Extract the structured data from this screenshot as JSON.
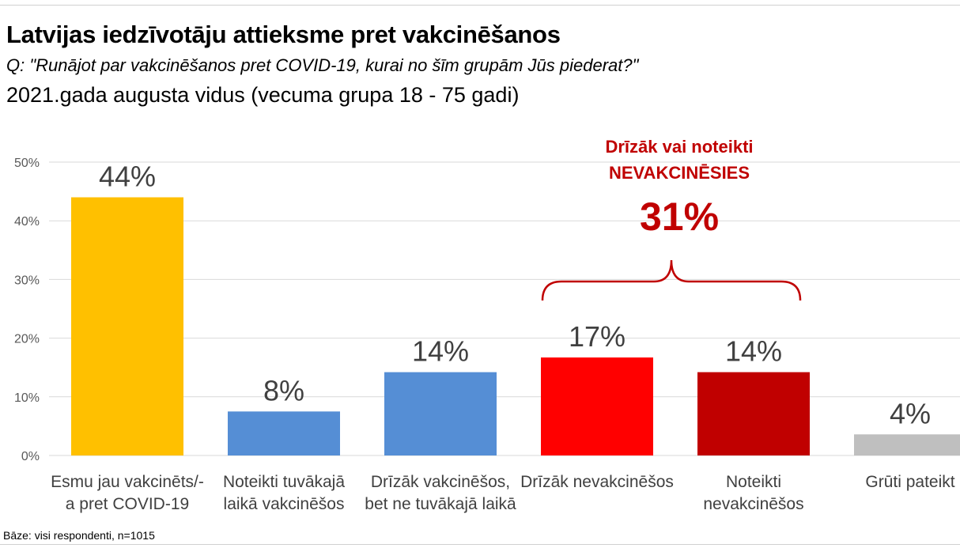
{
  "header": {
    "title": "Latvijas iedzīvotāju attieksme pret vakcinēšanos",
    "question": "Q: \"Runājot par vakcinēšanos pret COVID-19, kurai no šīm grupām Jūs piederat?\"",
    "period": "2021.gada augusta vidus (vecuma grupa 18 - 75 gadi)"
  },
  "footnote": "Bāze: visi respondenti, n=1015",
  "chart_data": {
    "type": "bar",
    "title": "Latvijas iedzīvotāju attieksme pret vakcinēšanos",
    "categories": [
      [
        "Esmu jau vakcinēts/-",
        "a pret COVID-19"
      ],
      [
        "Noteikti tuvākajā",
        "laikā vakcinēšos"
      ],
      [
        "Drīzāk vakcinēšos,",
        "bet ne tuvākajā laikā"
      ],
      [
        "Drīzāk nevakcinēšos"
      ],
      [
        "Noteikti",
        "nevakcinēšos"
      ],
      [
        "Grūti pateikt"
      ]
    ],
    "values": [
      44,
      7.5,
      14.2,
      16.7,
      14.2,
      3.6
    ],
    "value_labels": [
      "44%",
      "8%",
      "14%",
      "17%",
      "14%",
      "4%"
    ],
    "colors": [
      "#ffc000",
      "#558ed5",
      "#558ed5",
      "#ff0000",
      "#c00000",
      "#bfbfbf"
    ],
    "ylim": [
      0,
      50
    ],
    "yticks": [
      0,
      10,
      20,
      30,
      40,
      50
    ],
    "ytick_labels": [
      "0%",
      "10%",
      "20%",
      "30%",
      "40%",
      "50%"
    ],
    "grid": true,
    "annotation": {
      "lines": [
        "Drīzāk vai noteikti",
        "NEVAKCINĒSIES"
      ],
      "total": "31%",
      "brace_over": [
        3,
        4
      ],
      "color": "#c00000"
    }
  }
}
